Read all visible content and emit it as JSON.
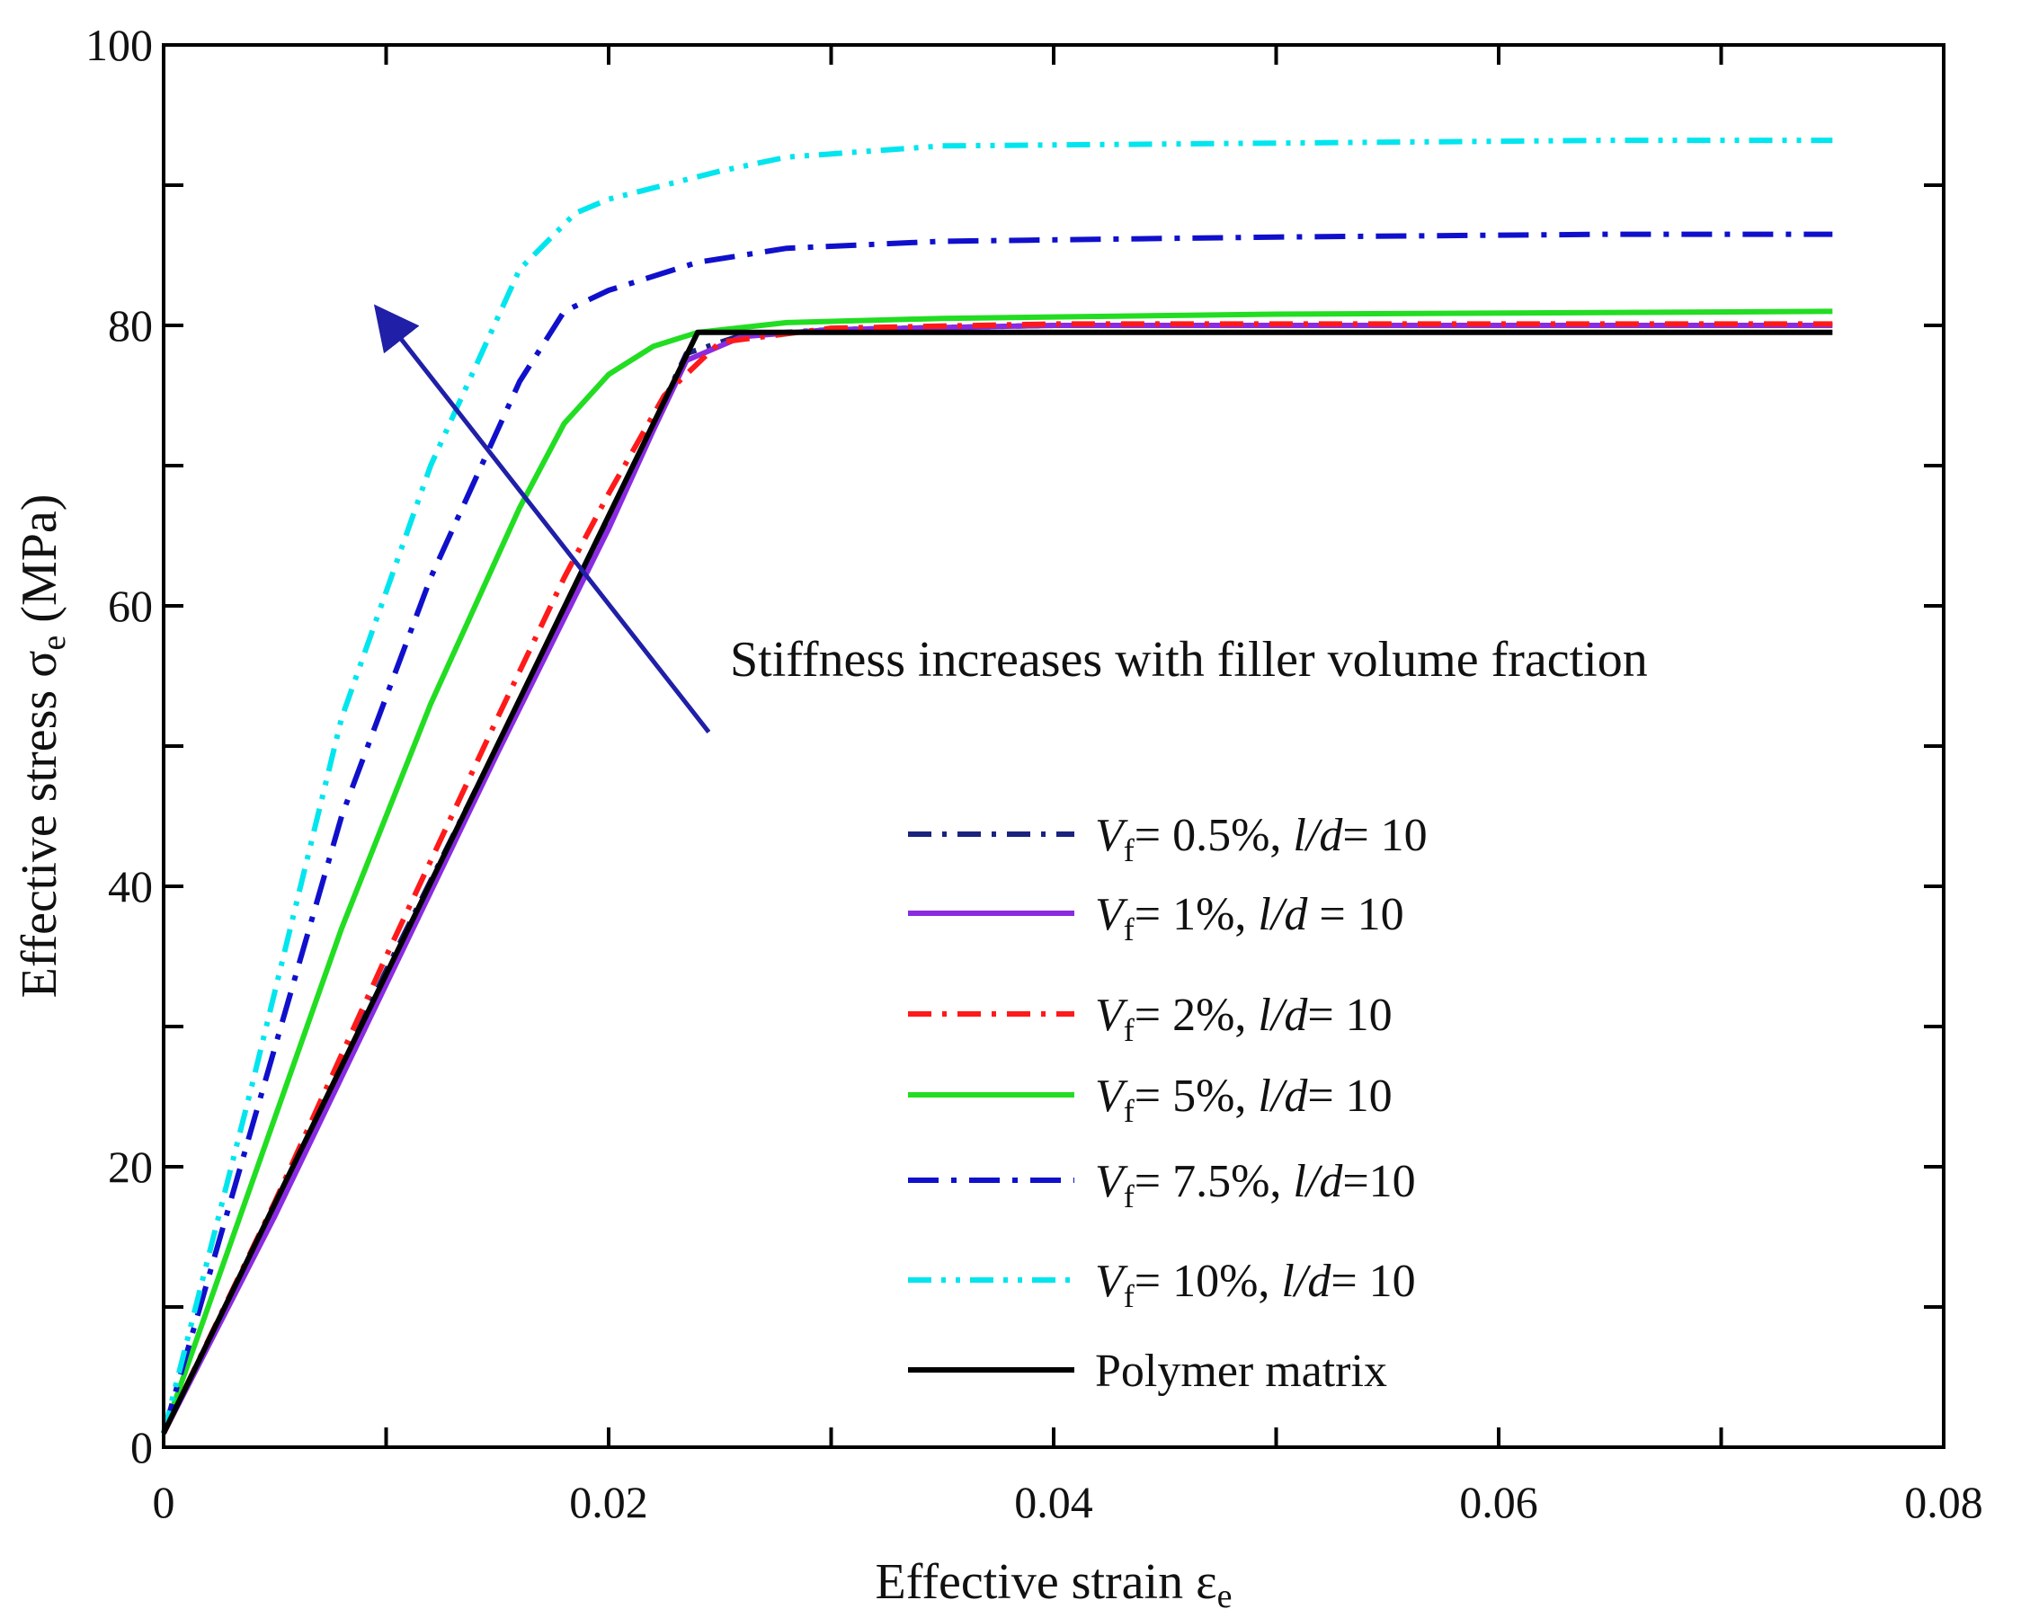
{
  "chart_data": {
    "type": "line",
    "title": "",
    "xlabel": "Effective strain ε",
    "xlabel_sub": "e",
    "ylabel": "Effective stress σ",
    "ylabel_sub": "e",
    "ylabel_unit": " (MPa)",
    "xlim": [
      0,
      0.08
    ],
    "ylim": [
      0,
      100
    ],
    "x_ticks": [
      0,
      0.02,
      0.04,
      0.06,
      0.08
    ],
    "x_tick_labels": [
      "0",
      "0.02",
      "0.04",
      "0.06",
      "0.08"
    ],
    "y_ticks": [
      0,
      20,
      40,
      60,
      80,
      100
    ],
    "y_tick_labels": [
      "0",
      "20",
      "40",
      "60",
      "80",
      "100"
    ],
    "grid": false,
    "legend_position": "bottom-right",
    "annotation": {
      "text": "Stiffness increases with filler volume fraction",
      "arrow_from": [
        0.0245,
        51
      ],
      "arrow_to": [
        0.0097,
        81
      ]
    },
    "series": [
      {
        "name": "Vf= 0.5%, l/d= 10",
        "legend": {
          "sym": "V",
          "sub": "f",
          "rest1": "= 0.5%, ",
          "it": "l/d",
          "rest2": "= 10"
        },
        "color": "#1a237e",
        "dash": "dashdot",
        "x": [
          0,
          0.005,
          0.01,
          0.015,
          0.02,
          0.022,
          0.0235,
          0.026,
          0.03,
          0.04,
          0.05,
          0.06,
          0.075
        ],
        "y": [
          1,
          17,
          34,
          50,
          66,
          73,
          78,
          79.3,
          79.7,
          80.0,
          80.0,
          80.0,
          80.0
        ]
      },
      {
        "name": "Vf= 1%, l/d = 10",
        "legend": {
          "sym": "V",
          "sub": "f",
          "rest1": "= 1%, ",
          "it": "l/d",
          "rest2": " = 10"
        },
        "color": "#8a2be2",
        "dash": "solid",
        "x": [
          0,
          0.005,
          0.01,
          0.015,
          0.02,
          0.022,
          0.0235,
          0.026,
          0.03,
          0.04,
          0.05,
          0.06,
          0.075
        ],
        "y": [
          1,
          16.5,
          33,
          49.5,
          65.5,
          72.5,
          77.5,
          79.2,
          79.7,
          80.0,
          80.0,
          80.0,
          80.0
        ]
      },
      {
        "name": "Vf= 2%, l/d= 10",
        "legend": {
          "sym": "V",
          "sub": "f",
          "rest1": "= 2%, ",
          "it": "l/d",
          "rest2": "= 10"
        },
        "color": "#ff1a1a",
        "dash": "dashdot",
        "x": [
          0,
          0.005,
          0.01,
          0.015,
          0.018,
          0.02,
          0.0225,
          0.025,
          0.03,
          0.04,
          0.05,
          0.06,
          0.075
        ],
        "y": [
          1,
          17.5,
          35,
          52,
          62,
          68,
          75,
          78.8,
          79.8,
          80.1,
          80.1,
          80.1,
          80.1
        ]
      },
      {
        "name": "Vf= 5%, l/d= 10",
        "legend": {
          "sym": "V",
          "sub": "f",
          "rest1": "= 5%, ",
          "it": "l/d",
          "rest2": "= 10"
        },
        "color": "#22dd22",
        "dash": "solid",
        "x": [
          0,
          0.004,
          0.008,
          0.012,
          0.016,
          0.018,
          0.02,
          0.022,
          0.024,
          0.028,
          0.035,
          0.05,
          0.075
        ],
        "y": [
          1,
          19,
          37,
          53,
          67,
          73,
          76.5,
          78.5,
          79.5,
          80.2,
          80.5,
          80.8,
          81.0
        ]
      },
      {
        "name": "Vf= 7.5%, l/d=10",
        "legend": {
          "sym": "V",
          "sub": "f",
          "rest1": "= 7.5%, ",
          "it": "l/d",
          "rest2": "=10"
        },
        "color": "#1010cc",
        "dash": "longdashdot",
        "x": [
          0,
          0.004,
          0.008,
          0.012,
          0.016,
          0.018,
          0.02,
          0.024,
          0.028,
          0.035,
          0.05,
          0.065,
          0.075
        ],
        "y": [
          1,
          23,
          45,
          62,
          76,
          81,
          82.5,
          84.5,
          85.5,
          86.0,
          86.3,
          86.5,
          86.5
        ]
      },
      {
        "name": "Vf= 10%, l/d= 10",
        "legend": {
          "sym": "V",
          "sub": "f",
          "rest1": "= 10%, ",
          "it": "l/d",
          "rest2": "= 10"
        },
        "color": "#00e5ee",
        "dash": "dashdotdot",
        "x": [
          0,
          0.004,
          0.008,
          0.012,
          0.016,
          0.0185,
          0.02,
          0.025,
          0.028,
          0.035,
          0.05,
          0.065,
          0.075
        ],
        "y": [
          1,
          26,
          52,
          70,
          84,
          88,
          89,
          91,
          92,
          92.8,
          93.0,
          93.2,
          93.2
        ]
      },
      {
        "name": "Polymer matrix",
        "legend": {
          "sym": "",
          "sub": "",
          "rest1": "Polymer matrix",
          "it": "",
          "rest2": ""
        },
        "color": "#000000",
        "dash": "solid",
        "x": [
          0,
          0.024,
          0.075
        ],
        "y": [
          1,
          79.5,
          79.5
        ]
      }
    ]
  }
}
